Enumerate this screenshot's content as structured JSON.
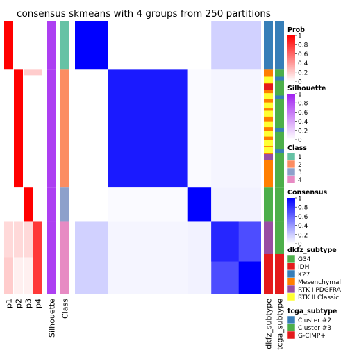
{
  "chart_data": {
    "type": "heatmap",
    "title": "consensus skmeans with 4 groups from 250 partitions",
    "column_labels": [
      "p1",
      "p2",
      "p3",
      "p4",
      "Silhouette",
      "Class",
      "dkfz_subtype",
      "tcga_subtype"
    ],
    "class_order": [
      1,
      2,
      3,
      4
    ],
    "class_sizes": [
      10,
      24,
      7,
      15
    ],
    "legends": {
      "prob": {
        "title": "Prob",
        "ticks": [
          "1",
          "0.8",
          "0.6",
          "0.4",
          "0.2",
          "0"
        ],
        "colors": [
          "#ff0000",
          "#ffffff"
        ]
      },
      "silhouette": {
        "title": "Silhouette",
        "ticks": [
          "1",
          "0.8",
          "0.6",
          "0.4",
          "0.2",
          "0"
        ],
        "colors": [
          "#a020f0",
          "#ffffff"
        ]
      },
      "class": {
        "title": "Class",
        "items": [
          {
            "label": "1",
            "color": "#66c2a5"
          },
          {
            "label": "2",
            "color": "#fc8d62"
          },
          {
            "label": "3",
            "color": "#8da0cb"
          },
          {
            "label": "4",
            "color": "#e78ac3"
          }
        ]
      },
      "consensus": {
        "title": "Consensus",
        "ticks": [
          "1",
          "0.8",
          "0.6",
          "0.4",
          "0.2",
          "0"
        ],
        "colors": [
          "#0000ff",
          "#ffffff"
        ]
      },
      "dkfz_subtype": {
        "title": "dkfz_subtype",
        "items": [
          {
            "label": "G34",
            "color": "#4daf4a"
          },
          {
            "label": "IDH",
            "color": "#e41a1c"
          },
          {
            "label": "K27",
            "color": "#377eb8"
          },
          {
            "label": "Mesenchymal",
            "color": "#ff7f00"
          },
          {
            "label": "RTK I PDGFRA",
            "color": "#984ea3"
          },
          {
            "label": "RTK II Classic",
            "color": "#ffff33"
          }
        ]
      },
      "tcga_subtype": {
        "title": "tcga_subtype",
        "items": [
          {
            "label": "Cluster #2",
            "color": "#377eb8"
          },
          {
            "label": "Cluster #3",
            "color": "#4daf4a"
          },
          {
            "label": "G-CIMP+",
            "color": "#e41a1c"
          }
        ]
      }
    }
  }
}
